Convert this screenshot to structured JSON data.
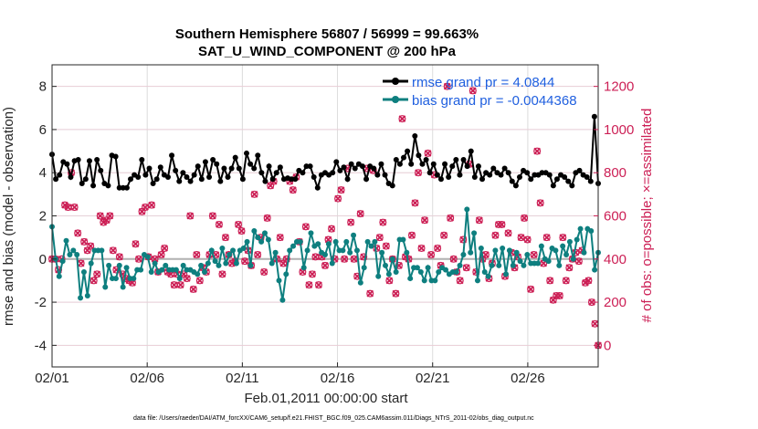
{
  "chart_data": {
    "type": "line",
    "title": "Southern Hemisphere 56807 / 56999 = 99.663%",
    "subtitle": "SAT_U_WIND_COMPONENT @ 200 hPa",
    "xlabel": "Feb.01,2011 00:00:00 start",
    "ylabel": "rmse and bias (model - observation)",
    "y2label": "# of obs: o=possible; ×=assimilated",
    "footnote": "data file: /Users/raeder/DAI/ATM_forcXX/CAM6_setup/f.e21.FHIST_BGC.f09_025.CAM6assim.011/Diags_NTrS_2011-02/obs_diag_output.nc",
    "xlim": [
      0,
      28.7
    ],
    "ylim": [
      -5,
      9
    ],
    "y2lim": [
      -100,
      1300
    ],
    "xticks": [
      0,
      5,
      10,
      15,
      20,
      25
    ],
    "xtick_labels": [
      "02/01",
      "02/06",
      "02/11",
      "02/16",
      "02/21",
      "02/26"
    ],
    "yticks": [
      -4,
      -2,
      0,
      2,
      4,
      6,
      8
    ],
    "y2ticks": [
      0,
      200,
      400,
      600,
      800,
      1000,
      1200
    ],
    "colors": {
      "rmse": "#000000",
      "bias": "#0e7f7f",
      "obs": "#cc1f55",
      "grid": "#dcdcdc",
      "zero": "#b0b0b0"
    },
    "legend": [
      "rmse grand pr = 4.0844",
      "bias grand pr = -0.0044368"
    ],
    "series": [
      {
        "name": "rmse",
        "values": [
          4.85,
          3.7,
          3.9,
          4.5,
          4.4,
          3.8,
          4.55,
          4.6,
          3.5,
          3.7,
          4.55,
          3.4,
          4.6,
          4.1,
          3.5,
          3.4,
          4.8,
          4.75,
          3.3,
          3.3,
          3.3,
          3.7,
          3.9,
          3.8,
          4.6,
          3.9,
          4.2,
          3.5,
          3.7,
          4.25,
          3.9,
          3.8,
          4.8,
          4.1,
          3.6,
          4.0,
          3.8,
          3.6,
          3.9,
          4.3,
          3.7,
          4.5,
          3.8,
          4.6,
          4.4,
          3.6,
          4.2,
          3.8,
          4.2,
          4.7,
          4.2,
          3.7,
          4.9,
          4.4,
          4.2,
          4.8,
          4.0,
          3.6,
          4.3,
          3.7,
          4.0,
          4.25,
          3.7,
          3.75,
          3.7,
          3.7,
          4.1,
          4.0,
          4.3,
          4.3,
          3.8,
          3.3,
          3.9,
          4.0,
          3.9,
          4.0,
          4.5,
          4.1,
          4.25,
          3.7,
          4.4,
          4.2,
          4.4,
          4.3,
          3.7,
          4.3,
          4.2,
          3.9,
          4.4,
          3.9,
          3.5,
          3.4,
          4.6,
          4.4,
          4.7,
          5.0,
          4.4,
          5.7,
          4.8,
          4.4,
          4.6,
          4.0,
          4.4,
          3.9,
          3.7,
          4.4,
          3.8,
          4.3,
          4.6,
          3.9,
          4.6,
          4.3,
          5.0,
          3.8,
          4.3,
          3.7,
          4.0,
          3.9,
          4.2,
          4.0,
          3.9,
          4.2,
          4.0,
          3.6,
          3.4,
          3.8,
          4.1,
          4.0,
          3.7,
          3.9,
          3.9,
          4.0,
          4.0,
          3.9,
          3.4,
          3.7,
          3.9,
          3.8,
          3.6,
          3.4,
          4.0,
          4.1,
          3.9,
          3.8,
          3.6,
          6.6,
          3.5
        ]
      },
      {
        "name": "bias",
        "values": [
          1.5,
          0.0,
          -0.8,
          -0.1,
          0.85,
          0.2,
          0.4,
          0.2,
          -1.8,
          -0.6,
          -1.7,
          -0.2,
          0.4,
          0.4,
          0.4,
          -1.3,
          -0.3,
          -0.9,
          -0.9,
          -0.3,
          -1.3,
          -0.4,
          -0.9,
          -0.9,
          -0.5,
          -0.5,
          0.2,
          0.1,
          -0.6,
          -0.2,
          -0.6,
          -0.5,
          -0.3,
          -0.5,
          -0.5,
          -0.5,
          -0.9,
          -0.3,
          -0.5,
          -0.5,
          -0.6,
          -0.7,
          -0.3,
          -0.6,
          -0.2,
          0.4,
          -0.1,
          -0.3,
          0.5,
          -0.2,
          0.2,
          0.4,
          -0.2,
          0.4,
          0.5,
          0.8,
          -0.3,
          1.3,
          1.0,
          0.8,
          1.2,
          0.9,
          -0.2,
          0.3,
          -1.0,
          -1.9,
          -0.7,
          0.4,
          0.6,
          0.8,
          0.8,
          -0.4,
          0.4,
          1.2,
          0.6,
          0.7,
          0.3,
          0.2,
          0.7,
          -0.2,
          0.8,
          0.4,
          0.4,
          0.8,
          0.3,
          1.1,
          0.4,
          -1.1,
          -0.4,
          0.8,
          0.6,
          0.8,
          -0.8,
          0.3,
          -0.3,
          -0.7,
          0.0,
          -0.6,
          0.9,
          0.9,
          0.3,
          -0.9,
          -0.4,
          -0.4,
          -0.6,
          -1.0,
          -0.4,
          -1.0,
          -1.0,
          -0.6,
          -0.4,
          -0.5,
          -0.7,
          -0.6,
          -0.6,
          -0.3,
          0.2,
          2.3,
          0.3,
          1.2,
          -1.0,
          0.5,
          -0.6,
          -0.8,
          -0.3,
          0.4,
          -0.3,
          0.5,
          -0.7,
          0.4,
          -0.3,
          0.3,
          -0.1,
          -0.3,
          0.2,
          -0.2,
          -0.2,
          -0.2,
          0.6,
          0.0,
          -0.1,
          0.5,
          0.4,
          -0.3,
          0.6,
          0.2,
          0.8,
          0.0,
          0.9,
          1.4,
          0.3,
          1.4,
          1.3,
          -0.5,
          0.3
        ]
      },
      {
        "name": "obs_possible",
        "values": [
          400,
          400,
          350,
          400,
          650,
          640,
          800,
          640,
          520,
          380,
          480,
          440,
          460,
          300,
          330,
          600,
          570,
          580,
          600,
          440,
          350,
          410,
          330,
          310,
          300,
          290,
          470,
          400,
          620,
          640,
          410,
          650,
          400,
          340,
          420,
          450,
          340,
          330,
          280,
          330,
          280,
          330,
          310,
          600,
          260,
          420,
          300,
          360,
          340,
          420,
          600,
          420,
          560,
          330,
          500,
          420,
          380,
          390,
          560,
          530,
          390,
          440,
          370,
          700,
          420,
          500,
          340,
          590,
          740,
          760,
          400,
          500,
          380,
          400,
          760,
          720,
          780,
          480,
          340,
          550,
          280,
          330,
          410,
          280,
          410,
          370,
          490,
          540,
          400,
          680,
          720,
          400,
          820,
          570,
          400,
          320,
          610,
          410,
          820,
          240,
          810,
          450,
          500,
          570,
          460,
          300,
          400,
          240,
          370,
          1050,
          410,
          400,
          510,
          660,
          800,
          450,
          580,
          890,
          420,
          790,
          450,
          370,
          510,
          1200,
          590,
          400,
          340,
          300,
          490,
          360,
          840,
          1180,
          340,
          580,
          400,
          420,
          310,
          380,
          510,
          560,
          560,
          320,
          520,
          430,
          360,
          410,
          500,
          590,
          490,
          260,
          420,
          900,
          660,
          380,
          500,
          300,
          210,
          230,
          230,
          500,
          300,
          360,
          400,
          430,
          390,
          440,
          290,
          300,
          200,
          100,
          0
        ]
      },
      {
        "name": "obs_assimilated",
        "values": [
          400,
          400,
          350,
          400,
          650,
          640,
          800,
          640,
          520,
          380,
          480,
          440,
          460,
          300,
          330,
          600,
          570,
          580,
          600,
          440,
          350,
          410,
          330,
          310,
          300,
          290,
          470,
          400,
          620,
          640,
          410,
          650,
          400,
          340,
          420,
          450,
          340,
          330,
          280,
          330,
          280,
          330,
          310,
          600,
          260,
          420,
          300,
          360,
          340,
          420,
          600,
          420,
          560,
          330,
          500,
          420,
          380,
          390,
          560,
          530,
          390,
          440,
          370,
          700,
          420,
          500,
          340,
          590,
          740,
          760,
          400,
          500,
          380,
          400,
          760,
          720,
          780,
          480,
          340,
          550,
          280,
          330,
          410,
          280,
          410,
          370,
          490,
          540,
          400,
          680,
          720,
          400,
          820,
          570,
          400,
          320,
          610,
          410,
          820,
          240,
          810,
          450,
          500,
          570,
          460,
          300,
          400,
          240,
          370,
          1050,
          410,
          400,
          510,
          660,
          800,
          450,
          580,
          890,
          420,
          790,
          450,
          370,
          510,
          1200,
          590,
          400,
          340,
          300,
          490,
          360,
          840,
          1180,
          340,
          580,
          400,
          420,
          310,
          380,
          510,
          560,
          560,
          320,
          520,
          430,
          360,
          410,
          500,
          590,
          490,
          260,
          420,
          900,
          660,
          380,
          500,
          300,
          210,
          230,
          230,
          500,
          300,
          360,
          400,
          430,
          390,
          440,
          290,
          300,
          200,
          100,
          0
        ]
      }
    ]
  }
}
